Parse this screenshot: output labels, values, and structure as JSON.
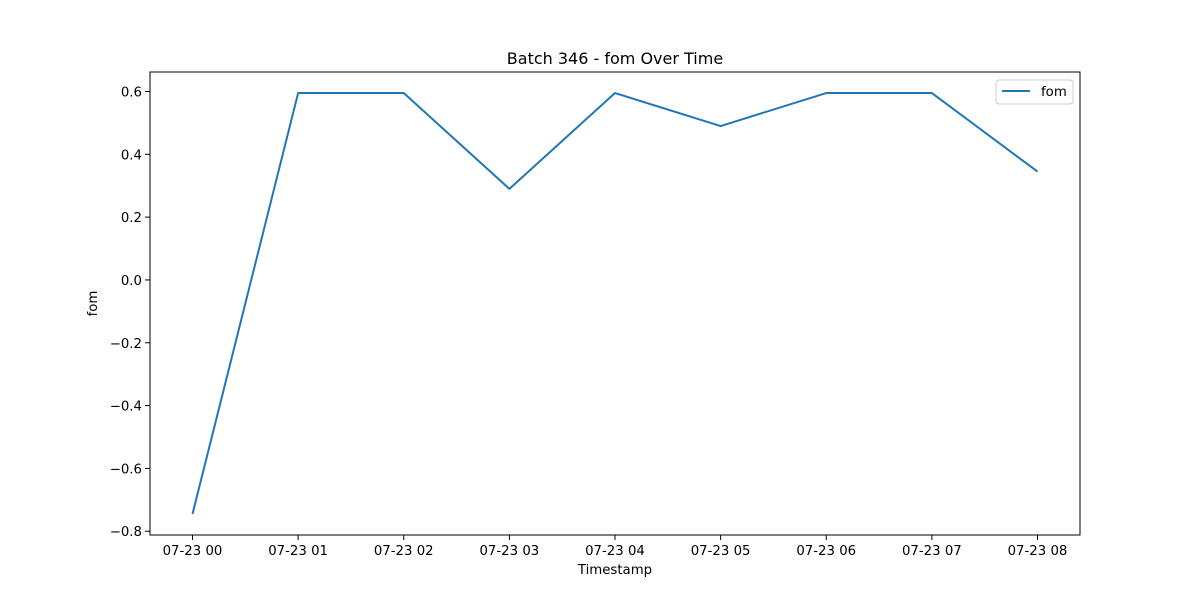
{
  "chart_data": {
    "type": "line",
    "title": "Batch 346 - fom Over Time",
    "xlabel": "Timestamp",
    "ylabel": "fom",
    "x": [
      "07-23 00",
      "07-23 01",
      "07-23 02",
      "07-23 03",
      "07-23 04",
      "07-23 05",
      "07-23 06",
      "07-23 07",
      "07-23 08"
    ],
    "series": [
      {
        "name": "fom",
        "color": "#1f77b4",
        "values": [
          -0.745,
          0.595,
          0.595,
          0.29,
          0.595,
          0.49,
          0.595,
          0.595,
          0.345
        ]
      }
    ],
    "yticks": [
      -0.8,
      -0.6,
      -0.4,
      -0.2,
      0.0,
      0.2,
      0.4,
      0.6
    ],
    "ytick_labels": [
      "−0.8",
      "−0.6",
      "−0.4",
      "−0.2",
      "0.0",
      "0.2",
      "0.4",
      "0.6"
    ],
    "ylim": [
      -0.812,
      0.662
    ],
    "grid": false,
    "legend_position": "top-right"
  }
}
